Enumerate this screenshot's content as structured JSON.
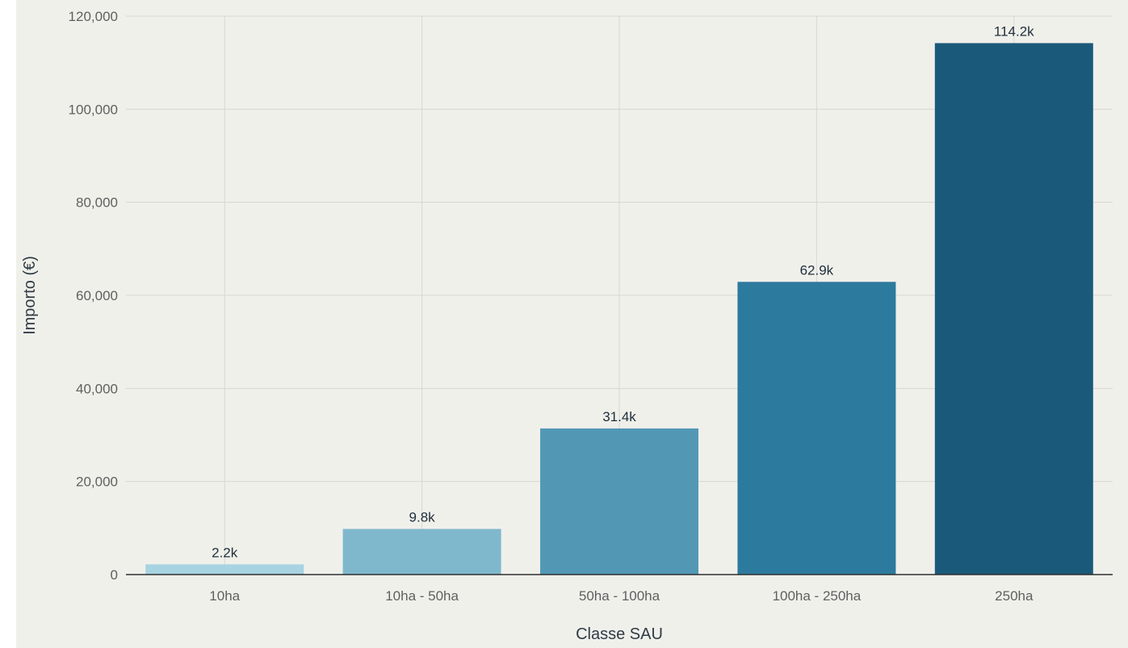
{
  "chart_data": {
    "type": "bar",
    "title": "",
    "xlabel": "Classe SAU",
    "ylabel": "Importo (€)",
    "categories": [
      "10ha",
      "10ha - 50ha",
      "50ha - 100ha",
      "100ha - 250ha",
      "250ha"
    ],
    "values": [
      2200,
      9800,
      31400,
      62900,
      114200
    ],
    "data_labels": [
      "2.2k",
      "9.8k",
      "31.4k",
      "62.9k",
      "114.2k"
    ],
    "ylim": [
      0,
      120000
    ],
    "yticks": [
      0,
      20000,
      40000,
      60000,
      80000,
      100000,
      120000
    ],
    "ytick_labels": [
      "0",
      "20,000",
      "40,000",
      "60,000",
      "80,000",
      "100,000",
      "120,000"
    ],
    "grid": true,
    "legend": "none",
    "colors": {
      "background": "#f0f0eb",
      "grid": "#d7d7d2",
      "axis": "#2f2f2f",
      "bars": [
        "#a8d3e1",
        "#7fb8cd",
        "#5298b5",
        "#2d7a9f",
        "#1b597a"
      ]
    }
  }
}
